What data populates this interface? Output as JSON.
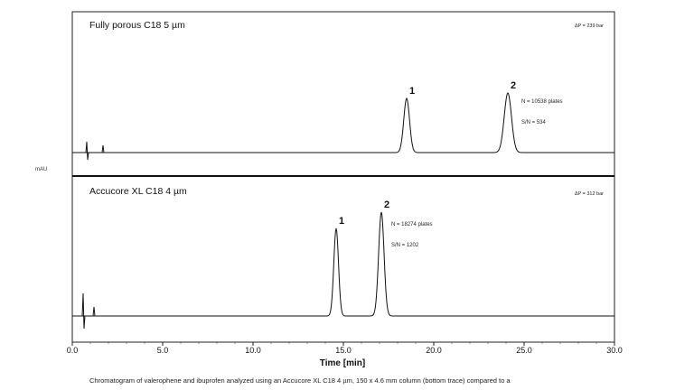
{
  "chart_data": {
    "type": "line",
    "y_axis_label": "mAU",
    "xlabel": "Time [min]",
    "xlim": [
      0,
      30
    ],
    "xticks": [
      0,
      5,
      10,
      15,
      20,
      25,
      30
    ],
    "xtick_labels": [
      "0.0",
      "5.0",
      "10.0",
      "15.0",
      "20.0",
      "25.0",
      "30.0"
    ],
    "panels": [
      {
        "title": "Fully porous C18 5 µm",
        "pressure": "ΔP = 239 bar",
        "artifacts": [
          0.8,
          1.7
        ],
        "peaks": [
          {
            "label": "1",
            "time": 18.5
          },
          {
            "label": "2",
            "time": 24.1
          }
        ],
        "annotations": [
          "N = 10538 plates",
          "S/N = 534"
        ]
      },
      {
        "title": "Accucore XL C18 4 µm",
        "pressure": "ΔP = 312 bar",
        "artifacts": [
          0.6,
          1.2
        ],
        "peaks": [
          {
            "label": "1",
            "time": 14.6
          },
          {
            "label": "2",
            "time": 17.1
          }
        ],
        "annotations": [
          "N = 18274 plates",
          "S/N = 1202"
        ]
      }
    ],
    "caption": "Chromatogram of valerophene and ibuprofen analyzed using an Accucore XL C18 4 µm, 150 x 4.6 mm column (bottom trace) compared to a"
  }
}
